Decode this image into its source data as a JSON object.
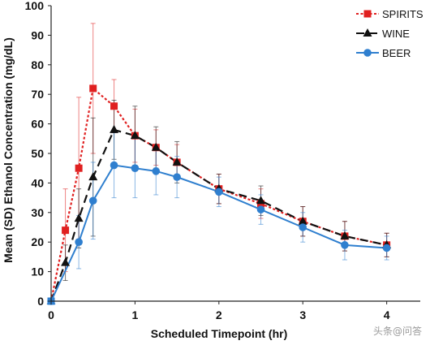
{
  "chart_data": {
    "type": "line",
    "xlabel": "Scheduled Timepoint (hr)",
    "ylabel": "Mean (SD) Ethanol Concentration (mg/dL)",
    "xlim": [
      0,
      4.4
    ],
    "ylim": [
      0,
      100
    ],
    "xticks": [
      0,
      1,
      2,
      3,
      4
    ],
    "yticks": [
      0,
      10,
      20,
      30,
      40,
      50,
      60,
      70,
      80,
      90,
      100
    ],
    "grid": false,
    "legend_position": "top-right",
    "series": [
      {
        "name": "SPIRITS",
        "color": "#e02020",
        "marker": "square",
        "line_style": "dotted",
        "x": [
          0,
          0.17,
          0.33,
          0.5,
          0.75,
          1.0,
          1.25,
          1.5,
          2.0,
          2.5,
          3.0,
          3.5,
          4.0
        ],
        "y": [
          0,
          24,
          45,
          72,
          66,
          56,
          52,
          47,
          38,
          33,
          27,
          22,
          19
        ],
        "err": [
          0,
          14,
          24,
          22,
          9,
          9,
          6,
          6,
          5,
          5,
          5,
          5,
          4
        ]
      },
      {
        "name": "WINE",
        "color": "#111111",
        "marker": "triangle",
        "line_style": "dashed",
        "x": [
          0,
          0.17,
          0.33,
          0.5,
          0.75,
          1.0,
          1.25,
          1.5,
          2.0,
          2.5,
          3.0,
          3.5,
          4.0
        ],
        "y": [
          0,
          13,
          28,
          42,
          58,
          56,
          52,
          47,
          38,
          34,
          27,
          22,
          19
        ],
        "err": [
          0,
          6,
          10,
          20,
          10,
          10,
          7,
          7,
          5,
          5,
          5,
          5,
          4
        ]
      },
      {
        "name": "BEER",
        "color": "#2f7fcf",
        "marker": "circle",
        "line_style": "solid",
        "x": [
          0,
          0.33,
          0.5,
          0.75,
          1.0,
          1.25,
          1.5,
          2.0,
          2.5,
          3.0,
          3.5,
          4.0
        ],
        "y": [
          0,
          20,
          34,
          46,
          45,
          44,
          42,
          37,
          31,
          25,
          19,
          18
        ],
        "err": [
          0,
          9,
          13,
          11,
          10,
          8,
          7,
          5,
          5,
          5,
          5,
          4
        ]
      }
    ]
  },
  "watermark": "头条@问答"
}
